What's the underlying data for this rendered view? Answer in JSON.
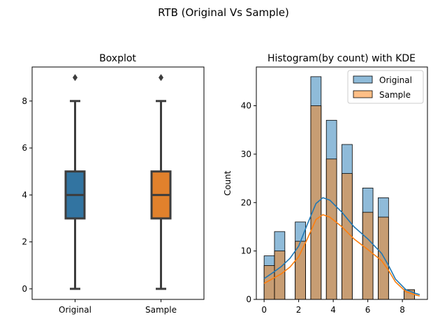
{
  "suptitle": "RTB (Original Vs Sample)",
  "chart_data": [
    {
      "type": "box",
      "title": "Boxplot",
      "xlabel": "",
      "ylabel": "",
      "categories": [
        "Original",
        "Sample"
      ],
      "ylim": [
        -0.45,
        9.45
      ],
      "yticks": [
        0,
        2,
        4,
        6,
        8
      ],
      "colors": [
        "#3274a1",
        "#e1812c"
      ],
      "boxes": [
        {
          "name": "Original",
          "min": 0,
          "q1": 3,
          "median": 4,
          "q3": 5,
          "max": 8,
          "outliers": [
            9
          ]
        },
        {
          "name": "Sample",
          "min": 0,
          "q1": 3,
          "median": 4,
          "q3": 5,
          "max": 8,
          "outliers": [
            9
          ]
        }
      ]
    },
    {
      "type": "histogram",
      "title": "Histogram(by count) with KDE",
      "xlabel": "",
      "ylabel": "Count",
      "xlim": [
        -0.45,
        9.45
      ],
      "ylim": [
        0,
        48
      ],
      "xticks": [
        0,
        2,
        4,
        6,
        8
      ],
      "yticks": [
        0,
        10,
        20,
        30,
        40
      ],
      "bin_width": 0.6,
      "bin_starts": [
        0,
        0.6,
        1.8,
        2.7,
        3.6,
        4.5,
        5.7,
        6.6,
        8.1
      ],
      "legend_position": "top-right",
      "series": [
        {
          "name": "Original",
          "color": "#1f77b4",
          "values": [
            9,
            14,
            16,
            46,
            37,
            32,
            23,
            21,
            2
          ],
          "kde": {
            "x": [
              0,
              0.5,
              1,
              1.5,
              2,
              2.5,
              3,
              3.4,
              3.8,
              4.5,
              5.2,
              6,
              6.8,
              7.2,
              7.6,
              8.2,
              8.8,
              9.0
            ],
            "y": [
              4.3,
              5.5,
              6.8,
              8.5,
              11,
              15.5,
              19.8,
              21,
              20.5,
              18,
              15,
              12.5,
              9.5,
              7,
              4.2,
              2,
              1.2,
              1.0
            ]
          }
        },
        {
          "name": "Sample",
          "color": "#ff7f0e",
          "values": [
            7,
            10,
            12,
            40,
            29,
            26,
            18,
            17,
            2
          ],
          "kde": {
            "x": [
              0,
              0.5,
              1,
              1.5,
              2,
              2.5,
              3,
              3.4,
              3.8,
              4.5,
              5.2,
              6,
              6.8,
              7.2,
              7.6,
              8.2,
              8.8,
              9.0
            ],
            "y": [
              3.3,
              4.3,
              5.3,
              6.7,
              8.8,
              12.5,
              16.5,
              17.5,
              17,
              15,
              12.5,
              10.3,
              8,
              6,
              3.6,
              1.6,
              0.9,
              0.7
            ]
          }
        }
      ]
    }
  ]
}
